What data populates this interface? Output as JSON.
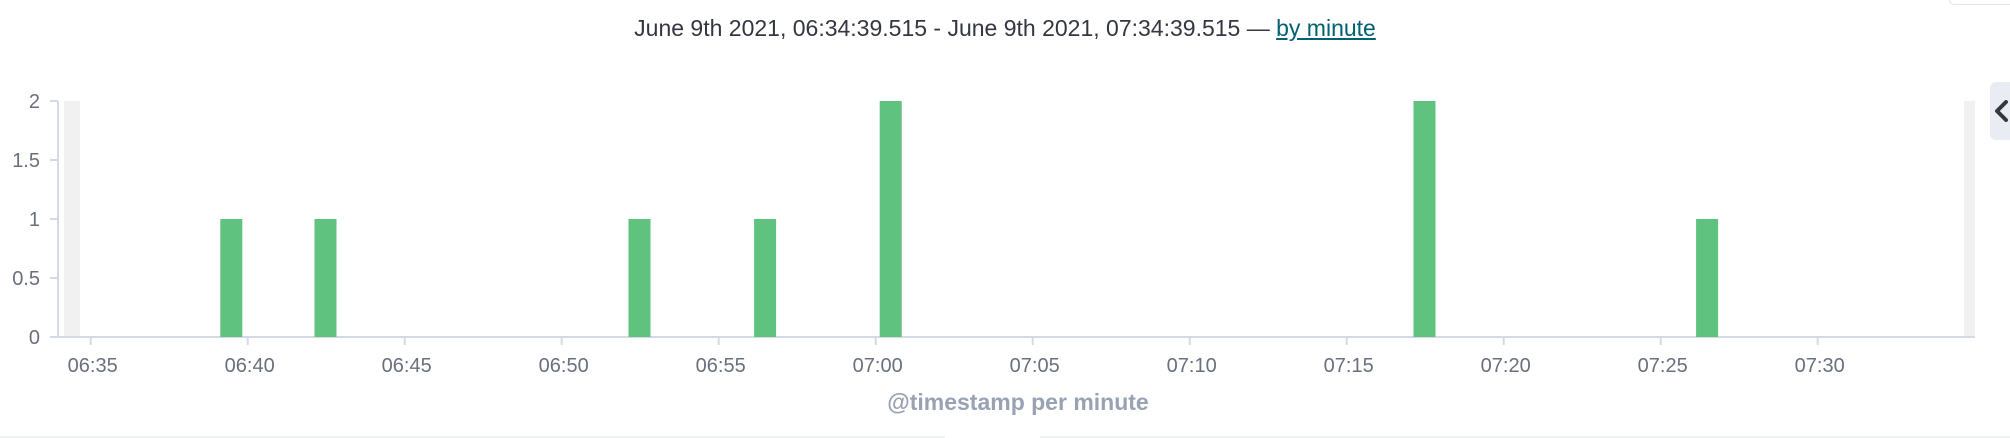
{
  "header": {
    "range_text": "June 9th 2021, 06:34:39.515 - June 9th 2021, 07:34:39.515 —",
    "interval_link": "by minute"
  },
  "chart_data": {
    "type": "bar",
    "xlabel": "@timestamp per minute",
    "ylabel": "",
    "ylim": [
      0,
      2
    ],
    "yticks": [
      "0",
      "0.5",
      "1",
      "1.5",
      "2"
    ],
    "xticks": [
      "06:35",
      "06:40",
      "06:45",
      "06:50",
      "06:55",
      "07:00",
      "07:05",
      "07:10",
      "07:15",
      "07:20",
      "07:25",
      "07:30"
    ],
    "x_range": [
      "06:34:39.515",
      "07:34:39.515"
    ],
    "bars": [
      {
        "x": "06:39",
        "y": 1
      },
      {
        "x": "06:42",
        "y": 1
      },
      {
        "x": "06:52",
        "y": 1
      },
      {
        "x": "06:56",
        "y": 1
      },
      {
        "x": "07:00",
        "y": 2
      },
      {
        "x": "07:17",
        "y": 2
      },
      {
        "x": "07:26",
        "y": 1
      }
    ],
    "bar_color": "#5fc27e",
    "grid": false,
    "legend": "none"
  },
  "colors": {
    "axis": "#d3dae6",
    "tick_text": "#69707d",
    "out_of_range_band": "#f1f1f1"
  },
  "icons": {
    "collapse": "chevron-left-icon"
  }
}
